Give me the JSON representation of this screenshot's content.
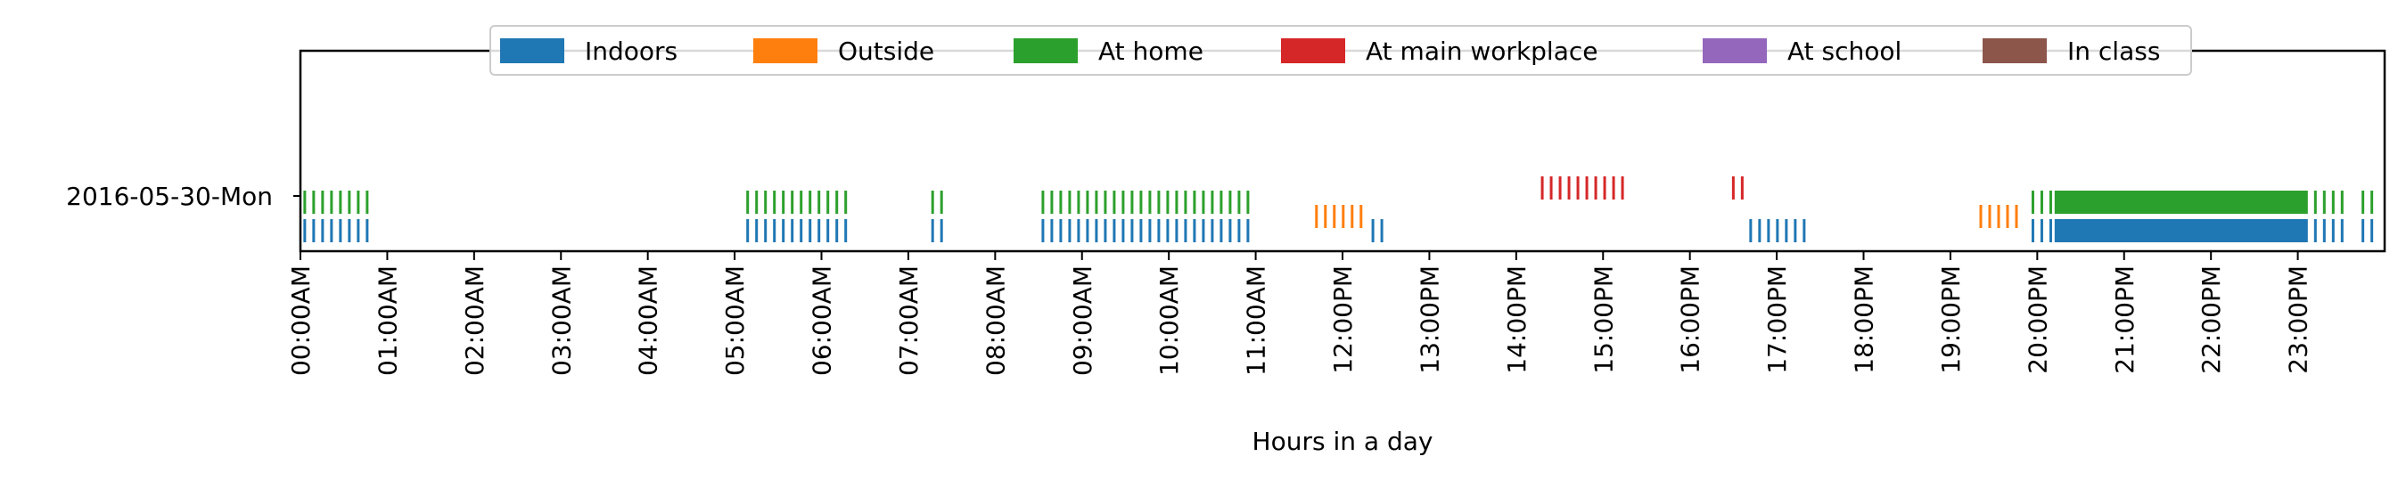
{
  "chart_data": {
    "type": "timeline",
    "title": "",
    "xlabel": "Hours in a day",
    "ylabel": "",
    "xlim_hours": [
      0,
      24
    ],
    "row_label": "2016-05-30-Mon",
    "x_ticks": [
      "00:00AM",
      "01:00AM",
      "02:00AM",
      "03:00AM",
      "04:00AM",
      "05:00AM",
      "06:00AM",
      "07:00AM",
      "08:00AM",
      "09:00AM",
      "10:00AM",
      "11:00AM",
      "12:00PM",
      "13:00PM",
      "14:00PM",
      "15:00PM",
      "16:00PM",
      "17:00PM",
      "18:00PM",
      "19:00PM",
      "20:00PM",
      "21:00PM",
      "22:00PM",
      "23:00PM"
    ],
    "legend_position": "top-center",
    "series": [
      {
        "name": "Indoors",
        "color": "#1f77b4",
        "lane": 0,
        "intervals": [
          [
            0.05,
            0.8
          ],
          [
            5.15,
            6.3
          ],
          [
            7.28,
            7.45
          ],
          [
            8.55,
            11.0
          ],
          [
            12.35,
            12.5
          ],
          [
            16.7,
            17.35
          ],
          [
            19.95,
            20.2
          ],
          [
            20.2,
            23.1
          ],
          [
            23.1,
            23.6
          ],
          [
            23.75,
            23.9
          ]
        ]
      },
      {
        "name": "Outside",
        "color": "#ff7f0e",
        "lane": 1,
        "intervals": [
          [
            11.7,
            12.25
          ],
          [
            19.35,
            19.8
          ]
        ]
      },
      {
        "name": "At home",
        "color": "#2ca02c",
        "lane": 2,
        "intervals": [
          [
            0.05,
            0.8
          ],
          [
            5.15,
            6.3
          ],
          [
            7.28,
            7.45
          ],
          [
            8.55,
            11.0
          ],
          [
            19.95,
            20.2
          ],
          [
            20.2,
            23.1
          ],
          [
            23.1,
            23.6
          ],
          [
            23.75,
            23.9
          ]
        ]
      },
      {
        "name": "At main workplace",
        "color": "#d62728",
        "lane": 3,
        "intervals": [
          [
            14.3,
            15.3
          ],
          [
            16.5,
            16.7
          ]
        ]
      },
      {
        "name": "At school",
        "color": "#9467bd",
        "lane": 4,
        "intervals": []
      },
      {
        "name": "In class",
        "color": "#8c564b",
        "lane": 5,
        "intervals": []
      }
    ]
  }
}
